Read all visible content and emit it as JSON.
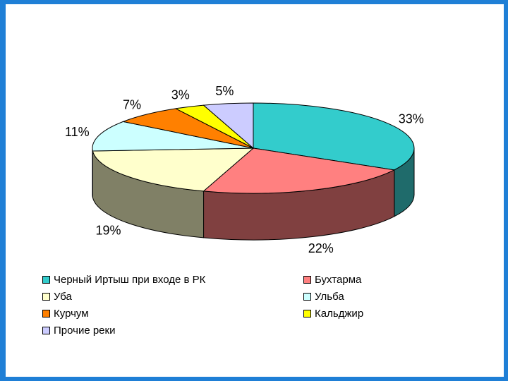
{
  "chart_data": {
    "type": "pie",
    "three_d": true,
    "legend_position": "bottom",
    "slices": [
      {
        "label": "Черный Иртыш при входе в РК",
        "value": 33,
        "display": "33%",
        "color": "#33cccc",
        "side": "#1f6b6b"
      },
      {
        "label": "Бухтарма",
        "value": 22,
        "display": "22%",
        "color": "#ff8080",
        "side": "#804040"
      },
      {
        "label": "Уба",
        "value": 19,
        "display": "19%",
        "color": "#ffffcc",
        "side": "#808066"
      },
      {
        "label": "Ульба",
        "value": 11,
        "display": "11%",
        "color": "#ccffff",
        "side": "#668080"
      },
      {
        "label": "Курчум",
        "value": 7,
        "display": "7%",
        "color": "#ff8000",
        "side": "#804000"
      },
      {
        "label": "Кальджир",
        "value": 3,
        "display": "3%",
        "color": "#ffff00",
        "side": "#808000"
      },
      {
        "label": "Прочие реки",
        "value": 5,
        "display": "5%",
        "color": "#ccccff",
        "side": "#666680"
      }
    ]
  },
  "legend": {
    "items": [
      {
        "label": "Черный Иртыш при входе в РК",
        "color": "#33cccc"
      },
      {
        "label": "Бухтарма",
        "color": "#ff8080"
      },
      {
        "label": "Уба",
        "color": "#ffffcc"
      },
      {
        "label": "Ульба",
        "color": "#ccffff"
      },
      {
        "label": "Курчум",
        "color": "#ff8000"
      },
      {
        "label": "Кальджир",
        "color": "#ffff00"
      },
      {
        "label": "Прочие реки",
        "color": "#ccccff"
      }
    ]
  }
}
